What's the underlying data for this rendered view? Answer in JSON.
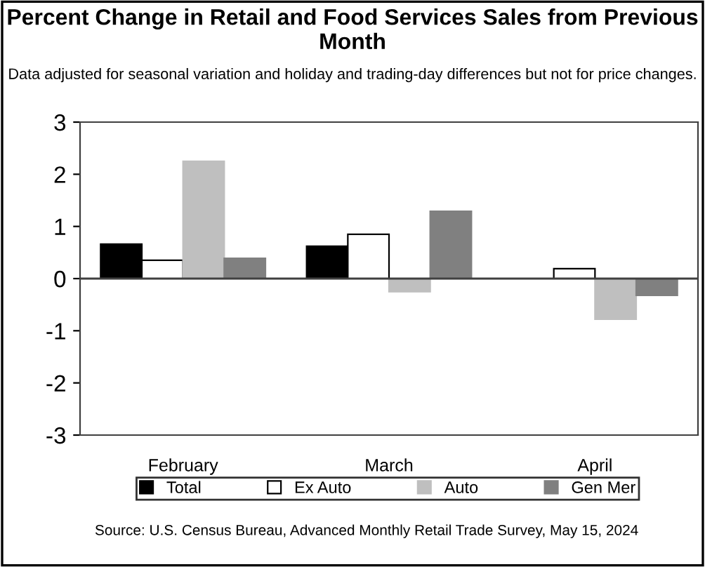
{
  "chart_data": {
    "type": "bar",
    "title": "Percent Change in Retail and Food Services Sales from Previous Month",
    "subtitle": "Data adjusted for seasonal variation and holiday and trading-day differences but not for price changes.",
    "categories": [
      "February",
      "March",
      "April"
    ],
    "series": [
      {
        "name": "Total",
        "color": "#000000",
        "values": [
          0.66,
          0.62,
          0
        ]
      },
      {
        "name": "Ex Auto",
        "color": "#ffffff",
        "values": [
          0.35,
          0.85,
          0.19
        ]
      },
      {
        "name": "Auto",
        "color": "#bfbfbf",
        "values": [
          2.25,
          -0.25,
          -0.78
        ]
      },
      {
        "name": "Gen Mer",
        "color": "#808080",
        "values": [
          0.39,
          1.29,
          -0.32
        ]
      }
    ],
    "ylim": [
      -3,
      3
    ],
    "yticks": [
      -3,
      -2,
      -1,
      0,
      1,
      2,
      3
    ],
    "legend": "bottom",
    "annotations": [
      "Source: U.S. Census Bureau, Advanced Monthly Retail Trade Survey, May 15, 2024"
    ]
  }
}
